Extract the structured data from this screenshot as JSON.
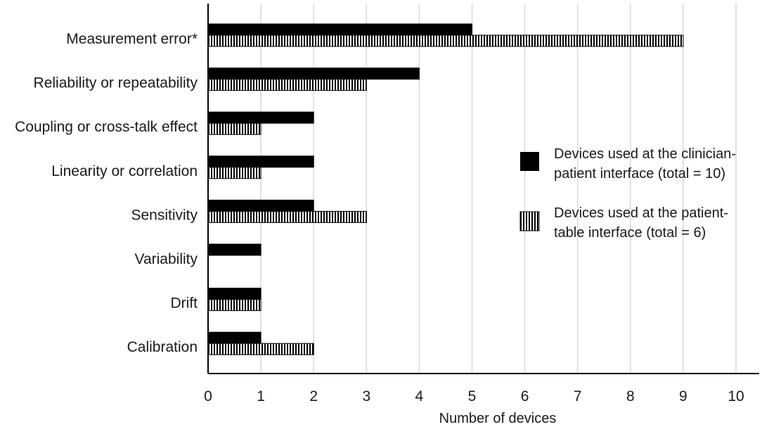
{
  "chart_data": {
    "type": "bar",
    "orientation": "horizontal",
    "title": "",
    "xlabel": "Number of devices",
    "ylabel": "",
    "xlim": [
      0,
      10
    ],
    "xticks": [
      "0",
      "1",
      "2",
      "3",
      "4",
      "5",
      "6",
      "7",
      "8",
      "9",
      "10"
    ],
    "grid": true,
    "legend_position": "right",
    "categories": [
      "Measurement error*",
      "Reliability or repeatability",
      "Coupling or cross-talk effect",
      "Linearity or correlation",
      "Sensitivity",
      "Variability",
      "Drift",
      "Calibration"
    ],
    "series": [
      {
        "name": "Devices used at the clinician-patient interface (total = 10)",
        "legend_lines": [
          "Devices used at the clinician-",
          "patient interface (total = 10)"
        ],
        "fill": "solid",
        "color": "#000000",
        "values": [
          5,
          4,
          2,
          2,
          2,
          1,
          1,
          1
        ]
      },
      {
        "name": "Devices used at the patient-table interface (total = 6)",
        "legend_lines": [
          "Devices used at the patient-",
          "table interface (total = 6)"
        ],
        "fill": "vertical-stripes",
        "color": "#000000",
        "values": [
          9,
          3,
          1,
          1,
          3,
          0,
          1,
          2
        ]
      }
    ]
  }
}
